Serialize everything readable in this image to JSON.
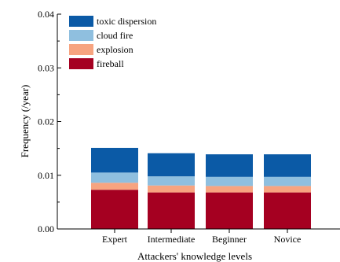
{
  "chart_data": {
    "type": "bar",
    "stacked": true,
    "categories": [
      "Expert",
      "Intermediate",
      "Beginner",
      "Novice"
    ],
    "series": [
      {
        "name": "fireball",
        "values": [
          0.0073,
          0.0068,
          0.0068,
          0.0068
        ],
        "color": "#a50021"
      },
      {
        "name": "explosion",
        "values": [
          0.0013,
          0.0013,
          0.0012,
          0.0012
        ],
        "color": "#f7a480"
      },
      {
        "name": "cloud fire",
        "values": [
          0.0019,
          0.0017,
          0.0017,
          0.0017
        ],
        "color": "#8fbfdf"
      },
      {
        "name": "toxic dispersion",
        "values": [
          0.0046,
          0.0043,
          0.0042,
          0.0042
        ],
        "color": "#0b5aa6"
      }
    ],
    "legend_order": [
      "toxic dispersion",
      "cloud fire",
      "explosion",
      "fireball"
    ],
    "xlabel": "Attackers' knowledge levels",
    "ylabel": "Frequency (/year)",
    "ylim": [
      0,
      0.04
    ],
    "yticks": [
      "0.00",
      "0.01",
      "0.02",
      "0.03",
      "0.04"
    ],
    "legend_position": "top-left",
    "grid": false
  }
}
